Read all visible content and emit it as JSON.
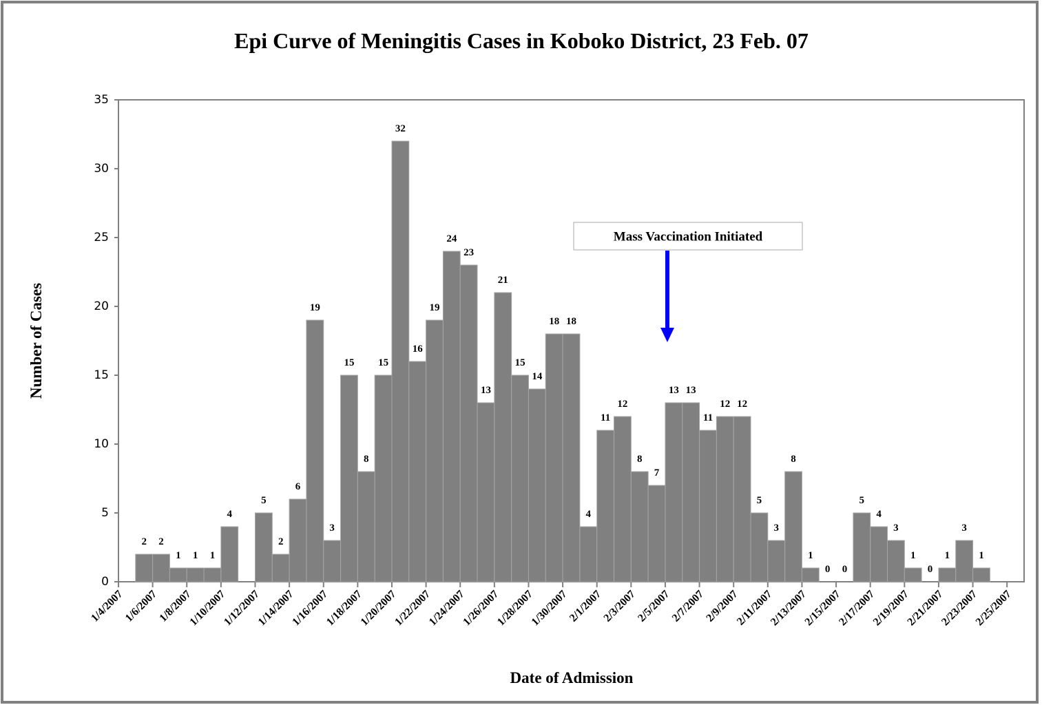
{
  "chart_data": {
    "type": "bar",
    "title": "Epi Curve of Meningitis Cases in Koboko District, 23 Feb. 07",
    "x_label": "Date of Admission",
    "y_label": "Number of Cases",
    "annotation": "Mass Vaccination Initiated",
    "color": "#808080",
    "categories": [
      "1/4/2007",
      null,
      "1/6/2007",
      null,
      "1/8/2007",
      null,
      "1/10/2007",
      null,
      "1/12/2007",
      null,
      "1/14/2007",
      null,
      "1/16/2007",
      null,
      "1/18/2007",
      null,
      "1/20/2007",
      null,
      "1/22/2007",
      null,
      "1/24/2007",
      null,
      "1/26/2007",
      null,
      "1/28/2007",
      null,
      "1/30/2007",
      null,
      "2/1/2007",
      null,
      "2/3/2007",
      null,
      "2/5/2007",
      null,
      "2/7/2007",
      null,
      "2/9/2007",
      null,
      "2/11/2007",
      null,
      "2/13/2007",
      null,
      "2/15/2007",
      null,
      "2/17/2007",
      null,
      "2/19/2007",
      null,
      "2/21/2007",
      null,
      "2/23/2007",
      null,
      "2/25/2007"
    ],
    "values": [
      null,
      2,
      2,
      1,
      1,
      1,
      4,
      null,
      5,
      2,
      6,
      19,
      3,
      15,
      8,
      15,
      32,
      16,
      19,
      24,
      23,
      13,
      21,
      15,
      14,
      18,
      18,
      4,
      11,
      12,
      8,
      7,
      13,
      13,
      11,
      12,
      12,
      5,
      3,
      8,
      1,
      0,
      0,
      5,
      4,
      3,
      1,
      0,
      1,
      3,
      1,
      null,
      null
    ],
    "ylim": [
      0,
      35
    ],
    "yticks": [
      0,
      5,
      10,
      15,
      20,
      25,
      30,
      35
    ],
    "grid": false
  }
}
